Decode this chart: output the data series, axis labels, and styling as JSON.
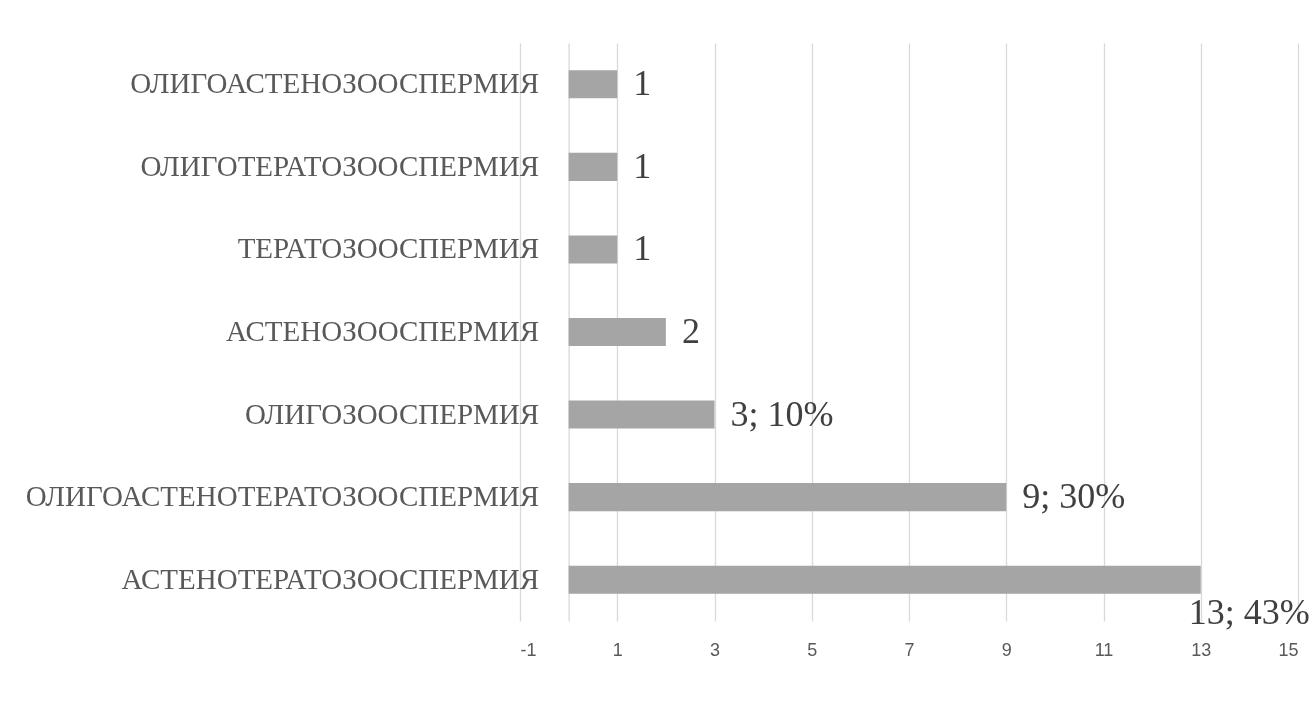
{
  "chart_data": {
    "type": "bar",
    "orientation": "horizontal",
    "categories": [
      "ОЛИГОАСТЕНОЗООСПЕРМИЯ",
      "ОЛИГОТЕРАТОЗООСПЕРМИЯ",
      "ТЕРАТОЗООСПЕРМИЯ",
      "АСТЕНОЗООСПЕРМИЯ",
      "ОЛИГОЗООСПЕРМИЯ",
      "ОЛИГОАСТЕНОТЕРАТОЗООСПЕРМИЯ",
      "АСТЕНОТЕРАТОЗООСПЕРМИЯ"
    ],
    "values": [
      1,
      1,
      1,
      2,
      3,
      9,
      13
    ],
    "value_labels": [
      "1",
      "1",
      "1",
      "2",
      "3; 10%",
      "9; 30%",
      "13; 43%"
    ],
    "color": "#a5a5a5",
    "xlim": [
      -1,
      15
    ],
    "xticks": [
      -1,
      1,
      3,
      5,
      7,
      9,
      11,
      13,
      15
    ],
    "grid": "x"
  }
}
